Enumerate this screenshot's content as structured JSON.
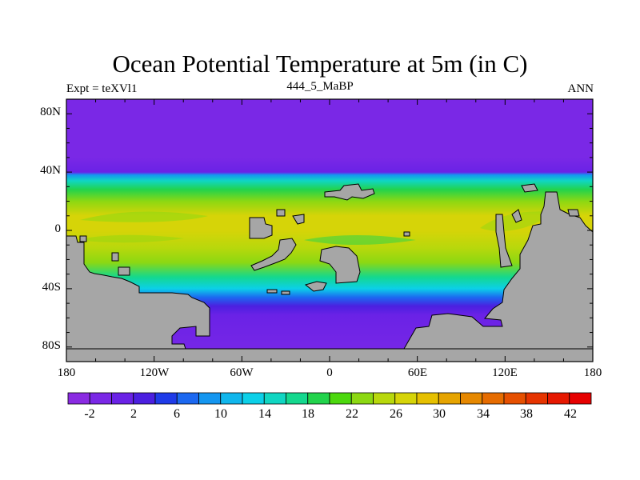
{
  "chart_data": {
    "type": "heatmap",
    "title": "Ocean Potential Temperature at 5m (in C)",
    "subtitle_left": "Expt = teXVl1",
    "subtitle_center": "444_5_MaBP",
    "subtitle_right": "ANN",
    "x_axis": {
      "range": [
        -180,
        180
      ],
      "ticks": [
        "180",
        "120W",
        "60W",
        "0",
        "60E",
        "120E",
        "180"
      ]
    },
    "y_axis": {
      "range": [
        -90,
        90
      ],
      "ticks": [
        "80N",
        "40N",
        "0",
        "40S",
        "80S"
      ]
    },
    "colorbar": {
      "levels": [
        -4,
        -2,
        0,
        2,
        4,
        6,
        8,
        10,
        12,
        14,
        16,
        18,
        20,
        22,
        24,
        26,
        28,
        30,
        32,
        34,
        36,
        38,
        40,
        42,
        44
      ],
      "labels": [
        "-2",
        "2",
        "6",
        "10",
        "14",
        "18",
        "22",
        "26",
        "30",
        "34",
        "38",
        "42"
      ],
      "colors": [
        "#8a2be2",
        "#7a28e6",
        "#6a22e6",
        "#4b1fe0",
        "#1f3be8",
        "#1c68f0",
        "#1496f0",
        "#10b6ec",
        "#0cd0e8",
        "#10d6c2",
        "#14d88e",
        "#22d34c",
        "#4cd80e",
        "#8cd812",
        "#b8d80c",
        "#d6d408",
        "#e6c000",
        "#e6a400",
        "#e68800",
        "#e66c00",
        "#e65000",
        "#e63400",
        "#e61800",
        "#e60000"
      ]
    },
    "land_color": "#a6a6a6",
    "ocean_field": {
      "description_bands": [
        {
          "lat": 90,
          "value": -1.5
        },
        {
          "lat": 50,
          "value": -1.5
        },
        {
          "lat": 40,
          "value": 0
        },
        {
          "lat": 38,
          "value": 8
        },
        {
          "lat": 34,
          "value": 14
        },
        {
          "lat": 28,
          "value": 19
        },
        {
          "lat": 20,
          "value": 23
        },
        {
          "lat": 10,
          "value": 26
        },
        {
          "lat": 0,
          "value": 27
        },
        {
          "lat": -12,
          "value": 25
        },
        {
          "lat": -22,
          "value": 22
        },
        {
          "lat": -32,
          "value": 17
        },
        {
          "lat": -40,
          "value": 12
        },
        {
          "lat": -46,
          "value": 7
        },
        {
          "lat": -52,
          "value": 3
        },
        {
          "lat": -58,
          "value": 0
        },
        {
          "lat": -90,
          "value": -1.5
        }
      ]
    }
  }
}
